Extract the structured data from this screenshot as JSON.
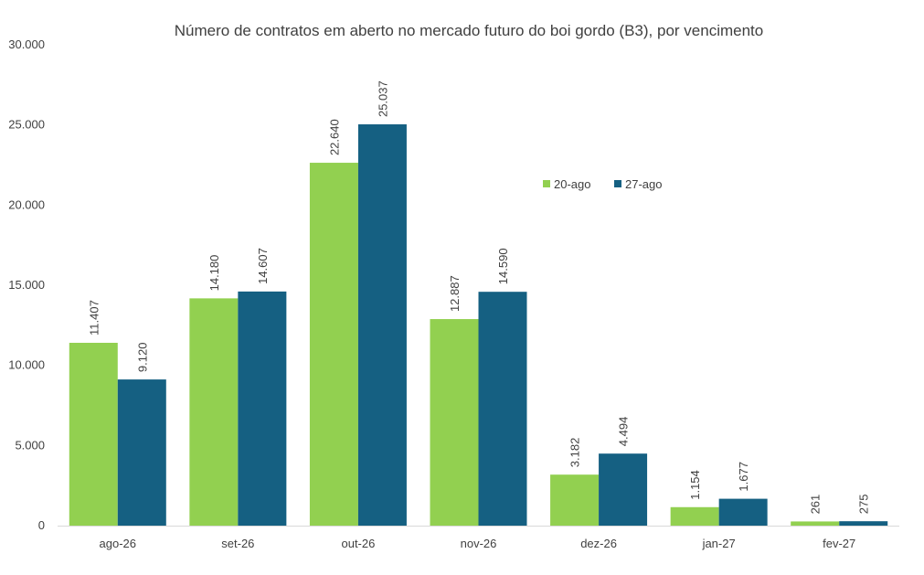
{
  "chart_data": {
    "type": "bar",
    "title": "Número de contratos em aberto no mercado futuro do boi gordo (B3), por vencimento",
    "xlabel": "",
    "ylabel": "",
    "categories": [
      "ago-26",
      "set-26",
      "out-26",
      "nov-26",
      "dez-26",
      "jan-27",
      "fev-27"
    ],
    "series": [
      {
        "name": "20-ago",
        "color": "#92d050",
        "values": [
          11407,
          14180,
          22640,
          12887,
          3182,
          1154,
          261
        ],
        "labels": [
          "11.407",
          "14.180",
          "22.640",
          "12.887",
          "3.182",
          "1.154",
          "261"
        ]
      },
      {
        "name": "27-ago",
        "color": "#156082",
        "values": [
          9120,
          14607,
          25037,
          14590,
          4494,
          1677,
          275
        ],
        "labels": [
          "9.120",
          "14.607",
          "25.037",
          "14.590",
          "4.494",
          "1.677",
          "275"
        ]
      }
    ],
    "ylim": [
      0,
      30000
    ],
    "yticks": [
      0,
      5000,
      10000,
      15000,
      20000,
      25000,
      30000
    ],
    "ytick_labels": [
      "0",
      "5.000",
      "10.000",
      "15.000",
      "20.000",
      "25.000",
      "30.000"
    ],
    "grid": false,
    "legend_position": "top-right, inside plot",
    "data_labels_rotated": true
  }
}
